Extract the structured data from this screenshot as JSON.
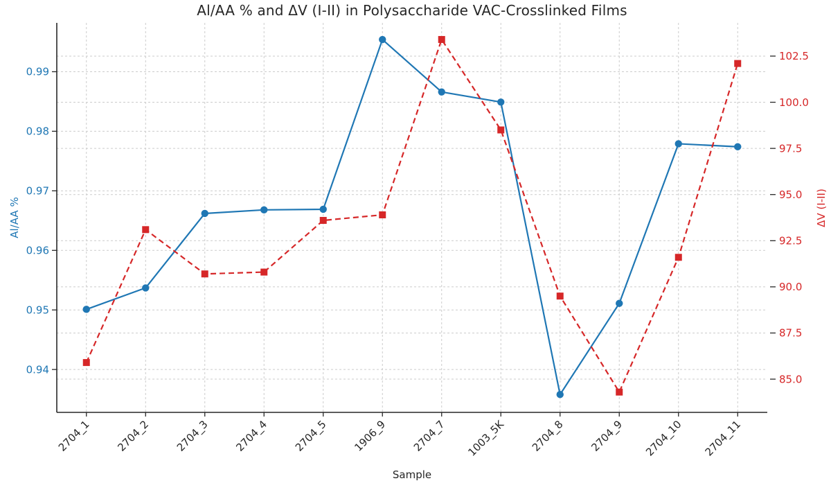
{
  "figure": {
    "title": "Al/AA % and ΔV (I-II) in Polysaccharide VAC-Crosslinked Films",
    "xlabel": "Sample",
    "left_ylabel": "Al/AA %",
    "right_ylabel": "ΔV (I-II)"
  },
  "chart_data": {
    "type": "line",
    "title": "Al/AA % and ΔV (I-II) in Polysaccharide VAC-Crosslinked Films",
    "xlabel": "Sample",
    "grid": true,
    "legend": "none",
    "categories": [
      "2704_1",
      "2704_2",
      "2704_3",
      "2704_4",
      "2704_5",
      "1906_9",
      "2704_7",
      "1003_5K",
      "2704_8",
      "2704_9",
      "2704_10",
      "2704_11"
    ],
    "series": [
      {
        "id": "alaa",
        "name": "Al/AA %",
        "axis": "left",
        "color": "#1f77b4",
        "linestyle": "solid",
        "marker": "circle",
        "values": [
          0.9501,
          0.9537,
          0.9662,
          0.9668,
          0.9669,
          0.9954,
          0.9866,
          0.9849,
          0.9358,
          0.9511,
          0.9779,
          0.9774
        ]
      },
      {
        "id": "dv",
        "name": "ΔV (I-II)",
        "axis": "right",
        "color": "#d62728",
        "linestyle": "dashed",
        "marker": "square",
        "values": [
          85.9,
          93.1,
          90.7,
          90.8,
          93.6,
          93.9,
          103.4,
          98.5,
          89.5,
          84.3,
          91.6,
          102.1
        ]
      }
    ],
    "left_axis": {
      "label": "Al/AA %",
      "color": "#1f77b4",
      "ticks": [
        0.94,
        0.95,
        0.96,
        0.97,
        0.98,
        0.99
      ],
      "tick_labels": [
        "0.94",
        "0.95",
        "0.96",
        "0.97",
        "0.98",
        "0.99"
      ],
      "lim": [
        0.9328,
        0.9982
      ]
    },
    "right_axis": {
      "label": "ΔV (I-II)",
      "color": "#d62728",
      "ticks": [
        85.0,
        87.5,
        90.0,
        92.5,
        95.0,
        97.5,
        100.0,
        102.5
      ],
      "tick_labels": [
        "85.0",
        "87.5",
        "90.0",
        "92.5",
        "95.0",
        "97.5",
        "100.0",
        "102.5"
      ],
      "lim": [
        83.2,
        104.3
      ]
    },
    "x_axis": {
      "label": "Sample",
      "lim": [
        -0.5,
        11.5
      ]
    }
  },
  "style": {
    "accent_blue": "#1f77b4",
    "accent_red": "#d62728",
    "grid_color": "#cbcbcb",
    "spine_color": "#262626",
    "text_color": "#262626",
    "background": "#ffffff"
  }
}
